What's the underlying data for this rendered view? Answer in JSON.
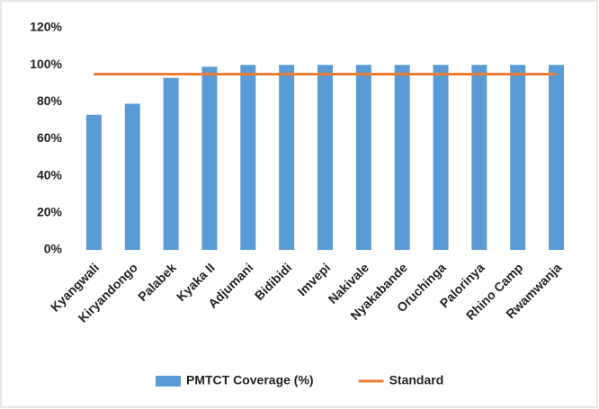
{
  "chart_data": {
    "type": "bar",
    "categories": [
      "Kyangwali",
      "Kiryandongo",
      "Palabek",
      "Kyaka II",
      "Adjumani",
      "Bidibidi",
      "Imvepi",
      "Nakivale",
      "Nyakabande",
      "Oruchinga",
      "Palorinya",
      "Rhino Camp",
      "Rwamwanja"
    ],
    "series": [
      {
        "name": "PMTCT Coverage (%)",
        "color": "#5b9bd5",
        "values": [
          73,
          79,
          93,
          99,
          100,
          100,
          100,
          100,
          100,
          100,
          100,
          100,
          100
        ]
      },
      {
        "name": "Standard",
        "color": "#ed7d31",
        "type": "line",
        "values": [
          95,
          95,
          95,
          95,
          95,
          95,
          95,
          95,
          95,
          95,
          95,
          95,
          95
        ]
      }
    ],
    "ylim": [
      0,
      120
    ],
    "yticks": [
      {
        "value": 0,
        "label": "0%"
      },
      {
        "value": 20,
        "label": "20%"
      },
      {
        "value": 40,
        "label": "40%"
      },
      {
        "value": 60,
        "label": "60%"
      },
      {
        "value": 80,
        "label": "80%"
      },
      {
        "value": 100,
        "label": "100%"
      },
      {
        "value": 120,
        "label": "120%"
      }
    ],
    "grid": false,
    "legend": "bottom"
  }
}
